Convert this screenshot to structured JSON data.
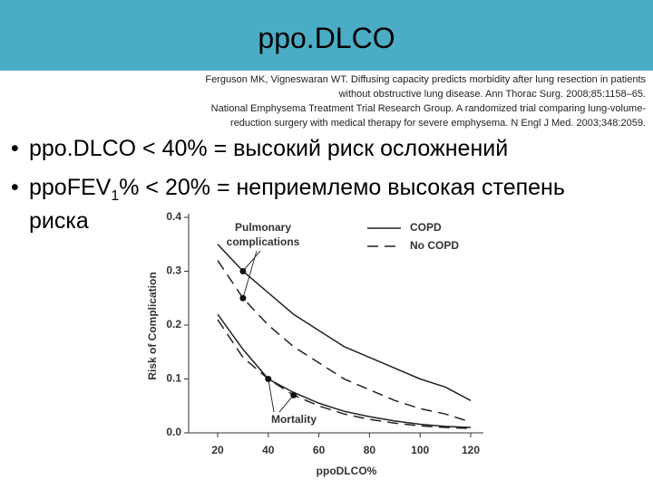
{
  "header": {
    "title": "ppo.DLCO"
  },
  "references": [
    "Ferguson MK, Vigneswaran WT. Diffusing capacity predicts morbidity after lung resection in patients",
    "without obstructive lung disease. Ann Thorac Surg. 2008;85:1158–65.",
    "National Emphysema Treatment Trial Research Group. A randomized trial comparing lung-volume-",
    "reduction surgery with medical therapy for severe emphysema. N Engl J Med. 2003;348:2059."
  ],
  "bullets": [
    {
      "text": "ppo.DLCO < 40% = высокий риск осложнений"
    },
    {
      "text": "ppoFEV",
      "sub": "1",
      "rest": "% < 20% = неприемлемо высокая степень",
      "rest2": "риска"
    }
  ],
  "chart_data": {
    "type": "line",
    "xlabel": "ppoDLCO%",
    "ylabel": "Risk of Complication",
    "x": [
      20,
      30,
      40,
      50,
      60,
      70,
      80,
      90,
      100,
      110,
      120
    ],
    "xlim": [
      10,
      125
    ],
    "xticks": [
      20,
      40,
      60,
      80,
      100,
      120
    ],
    "ylim": [
      0,
      0.4
    ],
    "yticks": [
      {
        "value": 0,
        "label": "0.0"
      },
      0.1,
      0.2,
      0.3,
      0.4
    ],
    "series": [
      {
        "name": "COPD",
        "color": "#222222",
        "dashed": false,
        "complications": [
          0.35,
          0.3,
          0.26,
          0.22,
          0.19,
          0.16,
          0.14,
          0.12,
          0.1,
          0.085,
          0.06
        ],
        "mortality": [
          0.22,
          0.155,
          0.1,
          0.075,
          0.055,
          0.04,
          0.03,
          0.022,
          0.016,
          0.012,
          0.01
        ]
      },
      {
        "name": "No COPD",
        "color": "#222222",
        "dashed": true,
        "complications": [
          0.32,
          0.25,
          0.2,
          0.16,
          0.13,
          0.1,
          0.08,
          0.06,
          0.045,
          0.035,
          0.02
        ],
        "mortality": [
          0.21,
          0.14,
          0.1,
          0.07,
          0.05,
          0.035,
          0.025,
          0.018,
          0.013,
          0.01,
          0.008
        ]
      }
    ],
    "annotations": {
      "complications": "Pulmonary\ncomplications",
      "mortality": "Mortality"
    },
    "legend": "top-right"
  }
}
